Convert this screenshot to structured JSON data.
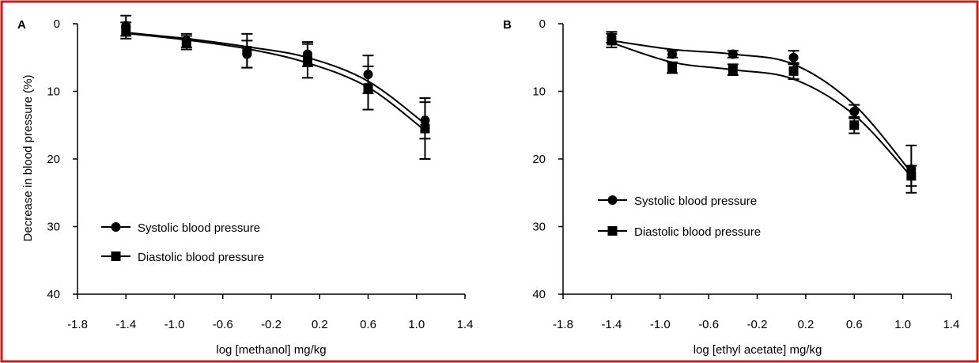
{
  "colors": {
    "frame": "#c0201e",
    "ink": "#000000",
    "background": "#ffffff"
  },
  "chart_data": [
    {
      "panel_label": "A",
      "type": "line",
      "xlabel": "log [methanol] mg/kg",
      "ylabel": "Decrease in blood pressure (%)",
      "xlim": [
        -1.8,
        1.4
      ],
      "ylim": [
        0,
        40
      ],
      "y_inverted": true,
      "xticks": [
        "-1.8",
        "-1.4",
        "-1.0",
        "-0.6",
        "-0.2",
        "0.2",
        "0.6",
        "1.0",
        "1.4"
      ],
      "yticks": [
        "0",
        "10",
        "20",
        "30",
        "40"
      ],
      "grid": false,
      "legend_position": "bottom-left",
      "series": [
        {
          "name": "Systolic blood pressure",
          "marker": "circle",
          "x": [
            -1.4,
            -0.9,
            -0.4,
            0.1,
            0.6,
            1.07
          ],
          "y": [
            0.3,
            2.5,
            4.5,
            4.5,
            7.5,
            14.3
          ],
          "err": [
            1.5,
            1.0,
            2.0,
            1.8,
            2.8,
            2.7
          ],
          "curve_y": [
            1.3,
            2.2,
            3.4,
            5.0,
            8.5,
            14.8
          ]
        },
        {
          "name": "Diastolic blood pressure",
          "marker": "square",
          "x": [
            -1.4,
            -0.9,
            -0.4,
            0.1,
            0.6,
            1.07
          ],
          "y": [
            1.0,
            2.8,
            4.0,
            5.5,
            9.5,
            15.5
          ],
          "err": [
            1.2,
            1.0,
            2.5,
            2.5,
            3.2,
            4.5
          ],
          "curve_y": [
            1.4,
            2.4,
            3.7,
            5.8,
            9.4,
            15.8
          ]
        }
      ]
    },
    {
      "panel_label": "B",
      "type": "line",
      "xlabel": "log [ethyl acetate] mg/kg",
      "ylabel": "",
      "xlim": [
        -1.8,
        1.4
      ],
      "ylim": [
        0,
        40
      ],
      "y_inverted": true,
      "xticks": [
        "-1.8",
        "-1.4",
        "-1.0",
        "-0.6",
        "-0.2",
        "0.2",
        "0.6",
        "1.0",
        "1.4"
      ],
      "yticks": [
        "0",
        "10",
        "20",
        "30",
        "40"
      ],
      "grid": false,
      "legend_position": "middle-left",
      "series": [
        {
          "name": "Systolic blood pressure",
          "marker": "circle",
          "x": [
            -1.4,
            -0.9,
            -0.4,
            0.1,
            0.6,
            1.07
          ],
          "y": [
            2.0,
            4.5,
            4.5,
            5.0,
            13.0,
            21.5
          ],
          "err": [
            0.8,
            0.5,
            0.5,
            1.0,
            1.0,
            3.5
          ],
          "curve_y": [
            2.5,
            3.8,
            4.5,
            6.0,
            12.0,
            22.0
          ]
        },
        {
          "name": "Diastolic blood pressure",
          "marker": "square",
          "x": [
            -1.4,
            -0.9,
            -0.4,
            0.1,
            0.6,
            1.07
          ],
          "y": [
            2.5,
            6.5,
            6.8,
            7.0,
            15.0,
            22.5
          ],
          "err": [
            1.0,
            0.8,
            0.8,
            1.2,
            1.2,
            1.5
          ],
          "curve_y": [
            2.8,
            5.7,
            6.8,
            8.2,
            13.5,
            22.6
          ]
        }
      ]
    }
  ]
}
